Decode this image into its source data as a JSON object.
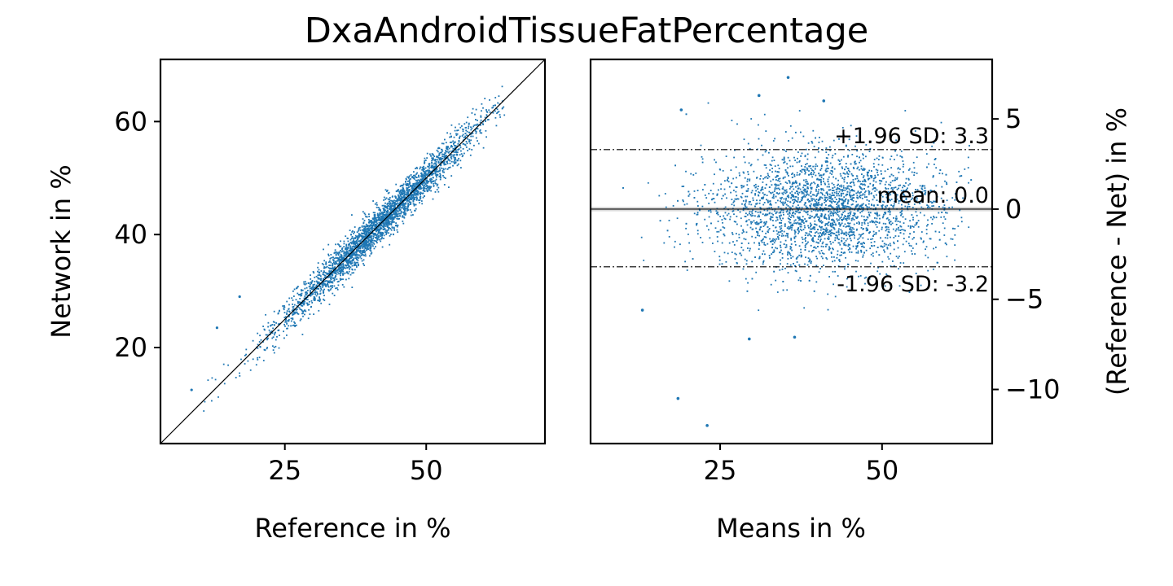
{
  "title": "DxaAndroidTissueFatPercentage",
  "colors": {
    "points": "#1f77b4",
    "lines": "#000000",
    "mean_band": "#bfbfbf"
  },
  "chart_data": [
    {
      "type": "scatter",
      "name": "scatter-panel",
      "xlabel": "Reference in %",
      "ylabel": "Network in %",
      "xlim": [
        3,
        71
      ],
      "ylim": [
        3,
        71
      ],
      "xticks": [
        25,
        50
      ],
      "yticks": [
        20,
        40,
        60
      ],
      "identity_line": true,
      "n_points": 3000,
      "points_summary": {
        "x_range": [
          8,
          64
        ],
        "distribution": "dense cloud along identity line, heaviest between 35 and 55",
        "outliers": [
          [
            17,
            29
          ],
          [
            13,
            23.5
          ],
          [
            8.5,
            12.5
          ]
        ]
      }
    },
    {
      "type": "scatter",
      "name": "bland-altman-panel",
      "xlabel": "Means in %",
      "ylabel": "(Reference - Net) in %",
      "xlim": [
        5,
        67
      ],
      "ylim": [
        -13,
        8.3
      ],
      "xticks": [
        25,
        50
      ],
      "yticks": [
        5,
        0,
        -5,
        -10
      ],
      "mean": 0.0,
      "upper_limit": 3.3,
      "lower_limit": -3.2,
      "labels": {
        "upper": "+1.96 SD: 3.3",
        "mean": "mean: 0.0",
        "lower": "-1.96 SD: -3.2"
      },
      "n_points": 3000,
      "points_summary": {
        "x_range": [
          10,
          64
        ],
        "sd": 1.65,
        "outliers": [
          [
            18.5,
            -10.5
          ],
          [
            23,
            -12
          ],
          [
            35.5,
            7.3
          ],
          [
            31,
            6.3
          ],
          [
            41,
            6.0
          ],
          [
            19,
            5.5
          ],
          [
            36.5,
            -7.1
          ],
          [
            29.5,
            -7.2
          ],
          [
            13,
            -5.6
          ]
        ]
      }
    }
  ]
}
